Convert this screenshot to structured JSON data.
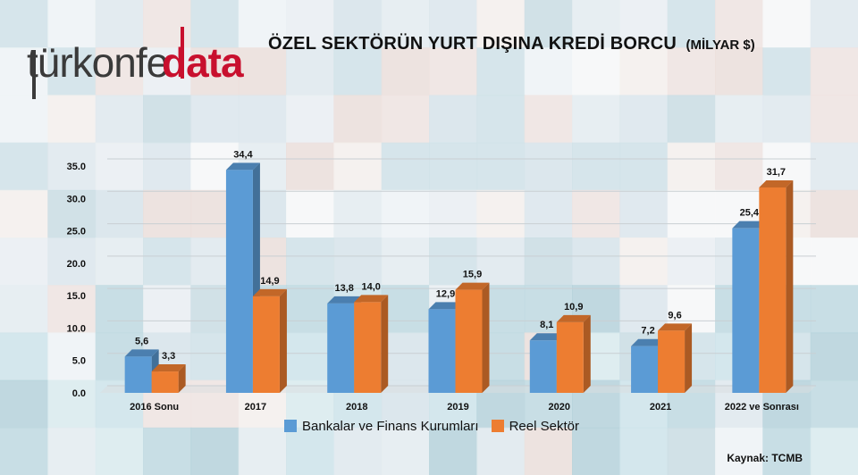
{
  "logo": {
    "part1": "türkonfe",
    "part2": "data"
  },
  "title": {
    "main": "ÖZEL SEKTÖRÜN YURT DIŞINA KREDİ BORCU",
    "unit": "(MİLYAR $)"
  },
  "colors": {
    "bank": "#5b9bd5",
    "real": "#ed7d31",
    "logo_red": "#c8102e",
    "logo_dark": "#3a3a3a"
  },
  "chart_data": {
    "type": "bar",
    "categories": [
      "2016 Sonu",
      "2017",
      "2018",
      "2019",
      "2020",
      "2021",
      "2022 ve Sonrası"
    ],
    "series": [
      {
        "name": "Bankalar ve Finans Kurumları",
        "values": [
          5.6,
          34.4,
          13.8,
          12.9,
          8.1,
          7.2,
          25.4
        ],
        "labels": [
          "5,6",
          "34,4",
          "13,8",
          "12,9",
          "8,1",
          "7,2",
          "25,4"
        ]
      },
      {
        "name": "Reel Sektör",
        "values": [
          3.3,
          14.9,
          14.0,
          15.9,
          10.9,
          9.6,
          31.7
        ],
        "labels": [
          "3,3",
          "14,9",
          "14,0",
          "15,9",
          "10,9",
          "9,6",
          "31,7"
        ]
      }
    ],
    "y_ticks": [
      "0.0",
      "5.0",
      "10.0",
      "15.0",
      "20.0",
      "25.0",
      "30.0",
      "35.0"
    ],
    "ylim": [
      0,
      35
    ],
    "grid": true,
    "legend_position": "bottom"
  },
  "source": "Kaynak: TCMB"
}
